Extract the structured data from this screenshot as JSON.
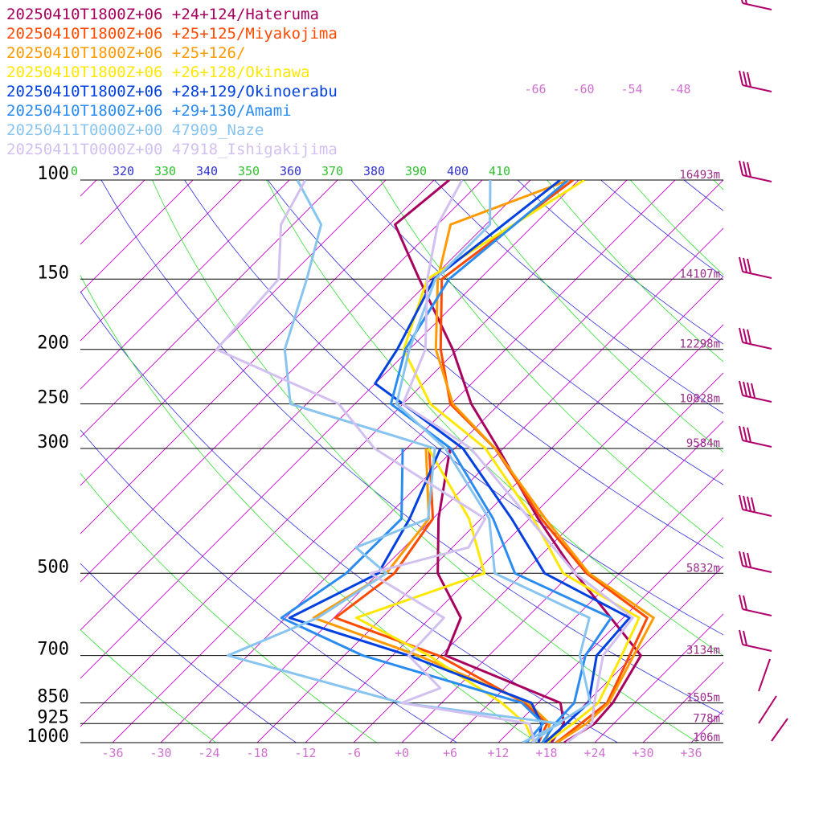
{
  "chart_data": {
    "type": "line",
    "title": "",
    "xlabel": "",
    "ylabel": "",
    "y_scale": "log",
    "ylim": [
      1000,
      100
    ],
    "xlim": [
      -40,
      40
    ],
    "pressure_levels": [
      100,
      150,
      200,
      250,
      300,
      500,
      700,
      850,
      925,
      1000
    ],
    "pressure_labels": [
      "100",
      "150",
      "200",
      "250",
      "300",
      "500",
      "700",
      "850",
      "925",
      "1000"
    ],
    "height_labels": [
      {
        "p": 100,
        "text": "16493m"
      },
      {
        "p": 150,
        "text": "14107m"
      },
      {
        "p": 200,
        "text": "12298m"
      },
      {
        "p": 250,
        "text": "10828m"
      },
      {
        "p": 300,
        "text": "9584m"
      },
      {
        "p": 500,
        "text": "5832m"
      },
      {
        "p": 700,
        "text": "3134m"
      },
      {
        "p": 850,
        "text": "1505m"
      },
      {
        "p": 925,
        "text": "778m"
      },
      {
        "p": 1000,
        "text": "106m"
      }
    ],
    "x_ticks": [
      -36,
      -30,
      -24,
      -18,
      -12,
      -6,
      0,
      6,
      12,
      18,
      24,
      30,
      36
    ],
    "x_tick_labels": [
      "-36",
      "-30",
      "-24",
      "-18",
      "-12",
      "-6",
      "+0",
      "+6",
      "+12",
      "+18",
      "+24",
      "+30",
      "+36"
    ],
    "isotherm_top_labels": [
      "-66",
      "-60",
      "-54",
      "-48"
    ],
    "theta_labels": [
      "0",
      "320",
      "330",
      "340",
      "350",
      "360",
      "370",
      "380",
      "390",
      "400",
      "410"
    ],
    "series": [
      {
        "name": "20250410T1800Z+06 +24+124/Hateruma",
        "color": "#a8005f",
        "temperature": [
          [
            1000,
            20.2
          ],
          [
            925,
            21.6
          ],
          [
            850,
            21.3
          ],
          [
            700,
            18.9
          ],
          [
            500,
            0.5
          ],
          [
            400,
            -10.9
          ],
          [
            300,
            -24.6
          ],
          [
            250,
            -33.5
          ],
          [
            200,
            -42.6
          ],
          [
            150,
            -55.5
          ],
          [
            120,
            -65.3
          ],
          [
            100,
            -64.1
          ]
        ],
        "dewpoint": [
          [
            1000,
            18.6
          ],
          [
            925,
            17.8
          ],
          [
            850,
            14.8
          ],
          [
            700,
            -5.4
          ],
          [
            600,
            -8.2
          ],
          [
            500,
            -16.6
          ],
          [
            400,
            -23.3
          ],
          [
            300,
            -30.6
          ]
        ]
      },
      {
        "name": "20250410T1800Z+06 +25+125/Miyakojima",
        "color": "#ff4a00",
        "temperature": [
          [
            1000,
            19.2
          ],
          [
            925,
            19.9
          ],
          [
            850,
            20.6
          ],
          [
            700,
            17.5
          ],
          [
            600,
            15.0
          ],
          [
            500,
            1.9
          ],
          [
            400,
            -10.5
          ],
          [
            300,
            -25.0
          ],
          [
            250,
            -36.1
          ],
          [
            200,
            -44.1
          ],
          [
            150,
            -52.7
          ],
          [
            100,
            -48.7
          ]
        ],
        "dewpoint": [
          [
            1000,
            17.0
          ],
          [
            925,
            15.7
          ],
          [
            850,
            10.3
          ],
          [
            700,
            -6.3
          ],
          [
            600,
            -23.8
          ],
          [
            500,
            -22.0
          ],
          [
            400,
            -24.0
          ],
          [
            300,
            -33.2
          ]
        ]
      },
      {
        "name": "20250410T1800Z+06 +25+126/",
        "color": "#ff9a00",
        "temperature": [
          [
            1000,
            19.3
          ],
          [
            925,
            20.6
          ],
          [
            850,
            20.8
          ],
          [
            700,
            18.0
          ],
          [
            600,
            15.8
          ],
          [
            500,
            2.2
          ],
          [
            400,
            -10.0
          ],
          [
            300,
            -25.0
          ],
          [
            250,
            -35.8
          ],
          [
            200,
            -44.7
          ],
          [
            150,
            -53.2
          ],
          [
            120,
            -58.4
          ],
          [
            100,
            -49.2
          ]
        ],
        "dewpoint": [
          [
            1000,
            18.0
          ],
          [
            925,
            16.0
          ],
          [
            850,
            10.8
          ],
          [
            700,
            -8.8
          ],
          [
            600,
            -26.5
          ],
          [
            500,
            -23.0
          ],
          [
            400,
            -24.5
          ],
          [
            300,
            -33.6
          ]
        ]
      },
      {
        "name": "20250410T1800Z+06 +26+128/Okinawa",
        "color": "#ffe800",
        "temperature": [
          [
            1000,
            18.0
          ],
          [
            925,
            18.9
          ],
          [
            850,
            19.5
          ],
          [
            700,
            16.5
          ],
          [
            600,
            14.0
          ],
          [
            500,
            -1.0
          ],
          [
            400,
            -11.5
          ],
          [
            300,
            -26.2
          ],
          [
            250,
            -38.6
          ],
          [
            200,
            -48.7
          ],
          [
            150,
            -54.5
          ],
          [
            100,
            -47.3
          ]
        ],
        "dewpoint": [
          [
            1000,
            16.4
          ],
          [
            925,
            13.0
          ],
          [
            850,
            7.5
          ],
          [
            700,
            -7.5
          ],
          [
            600,
            -21.2
          ],
          [
            500,
            -10.8
          ],
          [
            400,
            -19.5
          ],
          [
            300,
            -33.3
          ]
        ]
      },
      {
        "name": "20250410T1800Z+06 +28+129/Okinoerabu",
        "color": "#0040e0",
        "temperature": [
          [
            1000,
            17.8
          ],
          [
            925,
            18.1
          ],
          [
            850,
            18.3
          ],
          [
            700,
            13.4
          ],
          [
            600,
            12.8
          ],
          [
            500,
            -3.3
          ],
          [
            400,
            -14.2
          ],
          [
            300,
            -29.0
          ],
          [
            250,
            -42.0
          ],
          [
            230,
            -48.0
          ],
          [
            200,
            -49.5
          ],
          [
            150,
            -53.7
          ],
          [
            100,
            -50.3
          ]
        ],
        "dewpoint": [
          [
            1000,
            17.0
          ],
          [
            925,
            15.0
          ],
          [
            850,
            11.2
          ],
          [
            700,
            -10.0
          ],
          [
            600,
            -29.5
          ],
          [
            500,
            -24.0
          ],
          [
            400,
            -26.9
          ],
          [
            300,
            -31.8
          ]
        ]
      },
      {
        "name": "20250410T1800Z+06 +29+130/Amami",
        "color": "#2a8cf0",
        "temperature": [
          [
            1000,
            17.5
          ],
          [
            925,
            16.7
          ],
          [
            850,
            16.5
          ],
          [
            700,
            12.0
          ],
          [
            600,
            10.5
          ],
          [
            500,
            -7.0
          ],
          [
            400,
            -16.5
          ],
          [
            300,
            -30.5
          ],
          [
            250,
            -43.5
          ],
          [
            200,
            -48.5
          ],
          [
            150,
            -51.8
          ],
          [
            100,
            -49.3
          ]
        ],
        "dewpoint": [
          [
            1000,
            15.5
          ],
          [
            925,
            15.2
          ],
          [
            850,
            10.0
          ],
          [
            700,
            -15.7
          ],
          [
            600,
            -30.5
          ],
          [
            500,
            -28.0
          ],
          [
            400,
            -27.9
          ],
          [
            300,
            -36.5
          ]
        ]
      },
      {
        "name": "20250411T0000Z+00 47909_Naze",
        "color": "#88c4f0",
        "temperature": [
          [
            1000,
            16.2
          ],
          [
            925,
            17.0
          ],
          [
            850,
            18.5
          ],
          [
            700,
            11.3
          ],
          [
            600,
            7.8
          ],
          [
            500,
            -9.5
          ],
          [
            400,
            -17.0
          ],
          [
            300,
            -31.2
          ],
          [
            250,
            -42.8
          ],
          [
            200,
            -48.0
          ],
          [
            150,
            -53.5
          ],
          [
            120,
            -53.5
          ],
          [
            100,
            -59.0
          ]
        ],
        "dewpoint": [
          [
            1000,
            15.0
          ],
          [
            925,
            17.3
          ],
          [
            850,
            -5.0
          ],
          [
            700,
            -32.5
          ],
          [
            600,
            -26.0
          ],
          [
            500,
            -23.0
          ],
          [
            450,
            -30.0
          ],
          [
            400,
            -24.6
          ],
          [
            300,
            -32.5
          ],
          [
            250,
            -56.0
          ],
          [
            200,
            -63.5
          ],
          [
            150,
            -69.5
          ],
          [
            120,
            -74.5
          ],
          [
            100,
            -83.0
          ]
        ]
      },
      {
        "name": "20250411T0000Z+00 47918_Ishigakijima",
        "color": "#d2c0f0",
        "temperature": [
          [
            1000,
            20.5
          ],
          [
            925,
            21.3
          ],
          [
            850,
            19.0
          ],
          [
            700,
            14.2
          ],
          [
            600,
            13.2
          ],
          [
            500,
            0.5
          ],
          [
            400,
            -12.0
          ],
          [
            300,
            -28.0
          ],
          [
            250,
            -42.0
          ],
          [
            200,
            -46.0
          ],
          [
            150,
            -54.5
          ],
          [
            120,
            -60.0
          ],
          [
            100,
            -62.5
          ]
        ],
        "dewpoint": [
          [
            1000,
            16.5
          ],
          [
            925,
            13.5
          ],
          [
            850,
            -5.0
          ],
          [
            800,
            -2.0
          ],
          [
            700,
            -10.0
          ],
          [
            600,
            -10.3
          ],
          [
            500,
            -25.0
          ],
          [
            450,
            -16.0
          ],
          [
            400,
            -17.5
          ],
          [
            300,
            -40.0
          ],
          [
            250,
            -50.0
          ],
          [
            200,
            -72.0
          ],
          [
            150,
            -73.0
          ],
          [
            120,
            -79.5
          ],
          [
            100,
            -82.0
          ]
        ]
      }
    ],
    "grid": true,
    "legend_position": "top-left"
  }
}
